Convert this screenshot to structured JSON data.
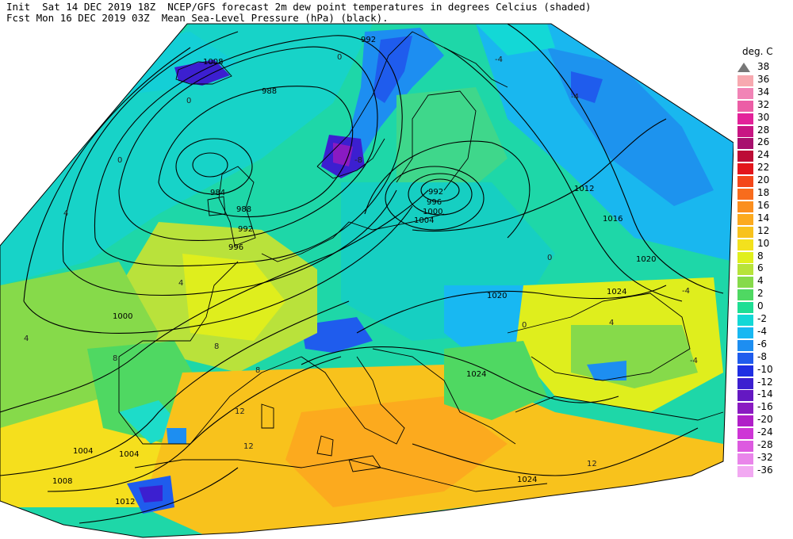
{
  "header": {
    "line1_left": "Init  Sat 14 DEC 2019 18Z",
    "line1_right": "NCEP/GFS forecast 2m dew point temperatures in degrees Celcius (shaded)",
    "line2_left": "Fcst Mon 16 DEC 2019 03Z",
    "line2_right": "Mean Sea-Level Pressure (hPa) (black)."
  },
  "legend": {
    "title": "deg. C",
    "levels": [
      {
        "label": "38",
        "color": "#ffffff"
      },
      {
        "label": "36",
        "color": "#f7a9b0"
      },
      {
        "label": "34",
        "color": "#f184b6"
      },
      {
        "label": "32",
        "color": "#ec5ea6"
      },
      {
        "label": "30",
        "color": "#e3229a"
      },
      {
        "label": "28",
        "color": "#c81583"
      },
      {
        "label": "26",
        "color": "#a8106e"
      },
      {
        "label": "24",
        "color": "#bd0c36"
      },
      {
        "label": "22",
        "color": "#e3161c"
      },
      {
        "label": "20",
        "color": "#f4471a"
      },
      {
        "label": "18",
        "color": "#f86c1d"
      },
      {
        "label": "16",
        "color": "#fb8f1f"
      },
      {
        "label": "14",
        "color": "#fcaa1e"
      },
      {
        "label": "12",
        "color": "#f8c21c"
      },
      {
        "label": "10",
        "color": "#f3e11d"
      },
      {
        "label": "8",
        "color": "#e0ef1d"
      },
      {
        "label": "6",
        "color": "#b7e33a"
      },
      {
        "label": "4",
        "color": "#86da4a"
      },
      {
        "label": "2",
        "color": "#4fd862"
      },
      {
        "label": "0",
        "color": "#1ede94"
      },
      {
        "label": "-2",
        "color": "#13d8d6"
      },
      {
        "label": "-4",
        "color": "#18b8f2"
      },
      {
        "label": "-6",
        "color": "#1d8ef1"
      },
      {
        "label": "-8",
        "color": "#1f5ced"
      },
      {
        "label": "-10",
        "color": "#1f2fe3"
      },
      {
        "label": "-12",
        "color": "#3c1fd0"
      },
      {
        "label": "-14",
        "color": "#6418c2"
      },
      {
        "label": "-16",
        "color": "#8a1ac2"
      },
      {
        "label": "-20",
        "color": "#b01fc8"
      },
      {
        "label": "-24",
        "color": "#ce35d6"
      },
      {
        "label": "-28",
        "color": "#dd5ae0"
      },
      {
        "label": "-32",
        "color": "#e985ea"
      },
      {
        "label": "-36",
        "color": "#f2a9f2"
      }
    ]
  },
  "isobar_labels": [
    "992",
    "988",
    "984",
    "988",
    "992",
    "996",
    "1000",
    "1004",
    "1004",
    "1008",
    "1012",
    "992",
    "996",
    "1000",
    "1004",
    "1012",
    "1016",
    "1020",
    "1020",
    "1024",
    "1024",
    "1024",
    "1008"
  ],
  "dewpoint_labels": [
    "0",
    "0",
    "0",
    "4",
    "4",
    "4",
    "8",
    "8",
    "8",
    "12",
    "12",
    "12",
    "-4",
    "-4",
    "-8",
    "-4",
    "0",
    "4",
    "0",
    "-4"
  ]
}
